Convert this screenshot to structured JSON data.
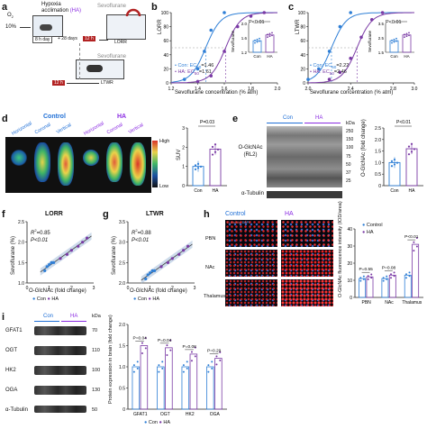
{
  "colors": {
    "con": "#2f7fd6",
    "ha": "#7a3aa5",
    "ha_label": "#8a2be2",
    "con_label": "#1f6fd6",
    "red": "#c0392b"
  },
  "panel_a": {
    "label": "a",
    "o2": "O",
    "o2_sub": "2",
    "o2_pct": "10%",
    "hypoxia_title": "Hypoxia",
    "acclim_title": "acclimation",
    "ha_tag": "(HA)",
    "sevo_top": "Sevoflurane",
    "timeline_a": "8 h day",
    "timeline_b": "+ 28 days",
    "timeline_c": "12 h",
    "lorr": "LORR",
    "sevo_bottom": "Sevoflurane",
    "timeline_d": "12 h",
    "ltwr": "LTWR"
  },
  "panel_b": {
    "label": "b",
    "ylabel": "LORR",
    "xlabel": "Sevoflurane concentration (% atm)",
    "yticks": [
      "100",
      "80",
      "60",
      "40",
      "20",
      "0"
    ],
    "xticks": [
      "1.2",
      "1.4",
      "1.6",
      "1.8",
      "2.0"
    ],
    "legend": [
      "Con: EC",
      "HA: EC"
    ],
    "ec50": [
      "=1.46",
      "=1.61"
    ],
    "inset_p": "P<0.01",
    "inset_ylabel": "Sevoflurane",
    "inset_yticks": [
      "2.0",
      "1.6",
      "1.2"
    ],
    "inset_x": [
      "Con",
      "HA"
    ]
  },
  "panel_c": {
    "label": "c",
    "ylabel": "LTWR",
    "xlabel": "Sevoflurane concentration (% atm)",
    "yticks": [
      "100",
      "80",
      "60",
      "40",
      "20",
      "0"
    ],
    "xticks": [
      "2.0",
      "2.4",
      "2.8",
      "3.0"
    ],
    "legend": [
      "Con: EC",
      "HA: EC"
    ],
    "ec50": [
      "=2.22",
      "=2.46"
    ],
    "inset_p": "P<0.01",
    "inset_ylabel": "Sevoflurane",
    "inset_yticks": [
      "3.5",
      "2.5",
      "1.5"
    ],
    "inset_x": [
      "Con",
      "HA"
    ]
  },
  "panel_d": {
    "label": "d",
    "con": "Control",
    "ha": "HA",
    "views": [
      "Horizontal",
      "Coronal",
      "Vertical"
    ],
    "scale_high": "High",
    "scale_low": "Low",
    "bar_p": "P=0.03",
    "bar_ylabel": "SUV",
    "bar_yticks": [
      "3",
      "2",
      "1",
      "0"
    ],
    "bar_x": [
      "Con",
      "HA"
    ]
  },
  "panel_e": {
    "label": "e",
    "con": "Con",
    "ha": "HA",
    "kda": "kDa",
    "markers": [
      "250",
      "150",
      "100",
      "75",
      "50",
      "37",
      "25"
    ],
    "blot_label": "O-GlcNAc (RL2)",
    "tubulin": "α-Tubulin",
    "bar_p": "P<0.01",
    "bar_ylabel": "O-GlcNAc (fold change)",
    "bar_yticks": [
      "2.5",
      "2.0",
      "1.5",
      "1.0",
      "0.5",
      "0"
    ],
    "bar_x": [
      "Con",
      "HA"
    ]
  },
  "panel_f": {
    "label": "f",
    "title": "LORR",
    "r2": "R",
    "r2_val": "=0.85",
    "p": "P<0.01",
    "ylabel": "Sevoflurane (%)",
    "xlabel": "O-GlcNAc (fold change)",
    "yticks": [
      "2.5",
      "2.0",
      "1.5",
      "1.0"
    ],
    "xticks": [
      "0",
      "1",
      "2",
      "3"
    ],
    "legend": [
      "Con",
      "HA"
    ]
  },
  "panel_g": {
    "label": "g",
    "title": "LTWR",
    "r2": "R",
    "r2_val": "=0.88",
    "p": "P<0.01",
    "ylabel": "Sevoflurane (%)",
    "xlabel": "O-GlcNAc (fold change)",
    "yticks": [
      "3.5",
      "3.0",
      "2.5",
      "2.0"
    ],
    "xticks": [
      "0",
      "1",
      "2",
      "3"
    ],
    "legend": [
      "Con",
      "HA"
    ]
  },
  "panel_h": {
    "label": "h",
    "con": "Control",
    "ha": "HA",
    "rows": [
      "PBN",
      "NAc",
      "Thalamus"
    ],
    "tag_ogl": "O-GlcNAc",
    "tag_dapi": "DAPI",
    "bar_ylabel": "O-GlcNAc fluorescence intensity (IOD/area)",
    "bar_yticks": [
      "40",
      "30",
      "20",
      "10",
      "0"
    ],
    "bar_x": [
      "PBN",
      "NAc",
      "Thalamus"
    ],
    "p_values": [
      "P=0.55",
      "P=0.08",
      "P<0.01"
    ],
    "legend": [
      "Control",
      "HA"
    ]
  },
  "panel_i": {
    "label": "i",
    "con": "Con",
    "ha": "HA",
    "kda": "kDa",
    "proteins": [
      "GFAT1",
      "OGT",
      "HK2",
      "OGA",
      "α-Tubulin"
    ],
    "sizes": [
      "70",
      "110",
      "100",
      "130",
      "50"
    ],
    "bar_ylabel": "Protein expression in brain (fold change)",
    "bar_yticks": [
      "2.0",
      "1.5",
      "1.0",
      "0.5",
      "0"
    ],
    "bar_x": [
      "GFAT1",
      "OGT",
      "HK2",
      "OGA"
    ],
    "p_values": [
      "P=0.04",
      "P=0.04",
      "P=0.08",
      "P=0.29"
    ],
    "legend": [
      "Con",
      "HA"
    ]
  },
  "chart_data": [
    {
      "type": "line",
      "panel": "b",
      "xlabel": "Sevoflurane concentration (% atm)",
      "ylabel": "LORR",
      "xlim": [
        1.2,
        2.0
      ],
      "ylim": [
        0,
        100
      ],
      "series": [
        {
          "name": "Con",
          "x": [
            1.3,
            1.4,
            1.45,
            1.5,
            1.6
          ],
          "y": [
            5,
            20,
            45,
            75,
            100
          ],
          "ec50": 1.46
        },
        {
          "name": "HA",
          "x": [
            1.4,
            1.5,
            1.6,
            1.7,
            1.8,
            1.9
          ],
          "y": [
            2,
            10,
            45,
            80,
            95,
            100
          ],
          "ec50": 1.61
        }
      ]
    },
    {
      "type": "line",
      "panel": "c",
      "xlabel": "Sevoflurane concentration (% atm)",
      "ylabel": "LTWR",
      "xlim": [
        2.0,
        3.0
      ],
      "ylim": [
        0,
        100
      ],
      "series": [
        {
          "name": "Con",
          "x": [
            2.0,
            2.1,
            2.2,
            2.3,
            2.4
          ],
          "y": [
            5,
            20,
            45,
            80,
            100
          ],
          "ec50": 2.22
        },
        {
          "name": "HA",
          "x": [
            2.2,
            2.3,
            2.4,
            2.5,
            2.6,
            2.7
          ],
          "y": [
            5,
            15,
            35,
            65,
            90,
            100
          ],
          "ec50": 2.46
        }
      ]
    },
    {
      "type": "bar",
      "panel": "d",
      "categories": [
        "Con",
        "HA"
      ],
      "values": [
        1.0,
        1.9
      ],
      "ylabel": "SUV",
      "ylim": [
        0,
        3
      ]
    },
    {
      "type": "bar",
      "panel": "e",
      "categories": [
        "Con",
        "HA"
      ],
      "values": [
        1.0,
        1.6
      ],
      "ylabel": "O-GlcNAc (fold change)",
      "ylim": [
        0,
        2.5
      ]
    },
    {
      "type": "scatter",
      "panel": "f",
      "xlabel": "O-GlcNAc (fold change)",
      "ylabel": "Sevoflurane (%)",
      "xlim": [
        0,
        3
      ],
      "ylim": [
        1.0,
        2.5
      ],
      "series": [
        {
          "name": "Con",
          "x": [
            0.8,
            0.9,
            1.0,
            1.1,
            1.2
          ],
          "y": [
            1.3,
            1.4,
            1.45,
            1.5,
            1.5
          ]
        },
        {
          "name": "HA",
          "x": [
            1.5,
            1.8,
            2.0,
            2.3,
            2.5,
            2.7
          ],
          "y": [
            1.6,
            1.7,
            1.8,
            1.9,
            2.0,
            2.1
          ]
        }
      ]
    },
    {
      "type": "scatter",
      "panel": "g",
      "xlabel": "O-GlcNAc (fold change)",
      "ylabel": "Sevoflurane (%)",
      "xlim": [
        0,
        3
      ],
      "ylim": [
        2.0,
        3.5
      ],
      "series": [
        {
          "name": "Con",
          "x": [
            0.8,
            0.9,
            1.0,
            1.1,
            1.2
          ],
          "y": [
            2.1,
            2.2,
            2.25,
            2.3,
            2.3
          ]
        },
        {
          "name": "HA",
          "x": [
            1.5,
            1.8,
            2.0,
            2.3,
            2.5,
            2.7
          ],
          "y": [
            2.4,
            2.5,
            2.6,
            2.7,
            2.8,
            2.9
          ]
        }
      ]
    },
    {
      "type": "bar",
      "panel": "h",
      "categories": [
        "PBN",
        "NAc",
        "Thalamus"
      ],
      "series": [
        {
          "name": "Control",
          "values": [
            11,
            11,
            13
          ]
        },
        {
          "name": "HA",
          "values": [
            12,
            13,
            31
          ]
        }
      ],
      "ylabel": "O-GlcNAc fluorescence intensity (IOD/area)",
      "ylim": [
        0,
        40
      ]
    },
    {
      "type": "bar",
      "panel": "i",
      "categories": [
        "GFAT1",
        "OGT",
        "HK2",
        "OGA"
      ],
      "series": [
        {
          "name": "Con",
          "values": [
            1.0,
            1.0,
            1.0,
            1.0
          ]
        },
        {
          "name": "HA",
          "values": [
            1.5,
            1.45,
            1.3,
            1.2
          ]
        }
      ],
      "ylabel": "Protein expression in brain (fold change)",
      "ylim": [
        0,
        2.0
      ]
    }
  ]
}
